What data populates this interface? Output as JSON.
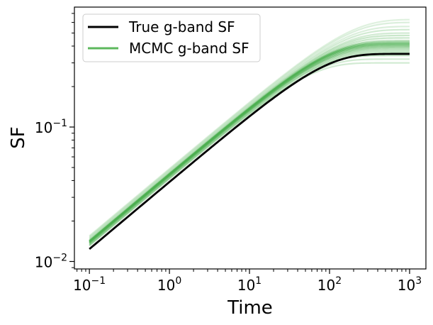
{
  "chart_data": {
    "type": "line",
    "title": "",
    "xlabel": "Time",
    "ylabel": "SF",
    "x_scale": "log",
    "y_scale": "log",
    "xlim": [
      0.065,
      1600
    ],
    "ylim": [
      0.0088,
      0.78
    ],
    "x_ticks": [
      {
        "value": 0.1,
        "base": "10",
        "exp": "−1"
      },
      {
        "value": 1,
        "base": "10",
        "exp": "0"
      },
      {
        "value": 10,
        "base": "10",
        "exp": "1"
      },
      {
        "value": 100,
        "base": "10",
        "exp": "2"
      },
      {
        "value": 1000,
        "base": "10",
        "exp": "3"
      }
    ],
    "y_ticks": [
      {
        "value": 0.01,
        "base": "10",
        "exp": "−2"
      },
      {
        "value": 0.1,
        "base": "10",
        "exp": "−1"
      }
    ],
    "grid": false,
    "legend_position": "top-left",
    "legend": [
      {
        "label": "True g-band SF",
        "color": "#000000"
      },
      {
        "label": "MCMC g-band SF",
        "color": "#5cb85c"
      }
    ],
    "true_curve": {
      "name": "True g-band SF",
      "color": "#000000",
      "sf_inf": 0.35,
      "tau": 80,
      "x": [
        0.1,
        0.3,
        1,
        3,
        10,
        30,
        100,
        300,
        1000
      ],
      "y": [
        0.011,
        0.019,
        0.035,
        0.06,
        0.108,
        0.18,
        0.275,
        0.335,
        0.35
      ]
    },
    "mcmc_curves": {
      "name": "MCMC g-band SF",
      "color": "#4caf50",
      "samples": [
        {
          "sf_inf": 0.3,
          "tau": 52,
          "alpha": 0.25
        },
        {
          "sf_inf": 0.32,
          "tau": 60,
          "alpha": 0.25
        },
        {
          "sf_inf": 0.34,
          "tau": 65,
          "alpha": 0.3
        },
        {
          "sf_inf": 0.35,
          "tau": 68,
          "alpha": 0.3
        },
        {
          "sf_inf": 0.36,
          "tau": 70,
          "alpha": 0.35
        },
        {
          "sf_inf": 0.37,
          "tau": 72,
          "alpha": 0.35
        },
        {
          "sf_inf": 0.38,
          "tau": 76,
          "alpha": 0.4
        },
        {
          "sf_inf": 0.39,
          "tau": 80,
          "alpha": 0.5
        },
        {
          "sf_inf": 0.4,
          "tau": 82,
          "alpha": 0.6
        },
        {
          "sf_inf": 0.41,
          "tau": 85,
          "alpha": 0.7
        },
        {
          "sf_inf": 0.42,
          "tau": 88,
          "alpha": 0.7
        },
        {
          "sf_inf": 0.43,
          "tau": 92,
          "alpha": 0.5
        },
        {
          "sf_inf": 0.44,
          "tau": 96,
          "alpha": 0.35
        },
        {
          "sf_inf": 0.46,
          "tau": 105,
          "alpha": 0.3
        },
        {
          "sf_inf": 0.48,
          "tau": 112,
          "alpha": 0.3
        },
        {
          "sf_inf": 0.5,
          "tau": 120,
          "alpha": 0.25
        },
        {
          "sf_inf": 0.53,
          "tau": 130,
          "alpha": 0.25
        },
        {
          "sf_inf": 0.56,
          "tau": 140,
          "alpha": 0.2
        },
        {
          "sf_inf": 0.6,
          "tau": 155,
          "alpha": 0.2
        },
        {
          "sf_inf": 0.63,
          "tau": 165,
          "alpha": 0.18
        }
      ]
    }
  }
}
